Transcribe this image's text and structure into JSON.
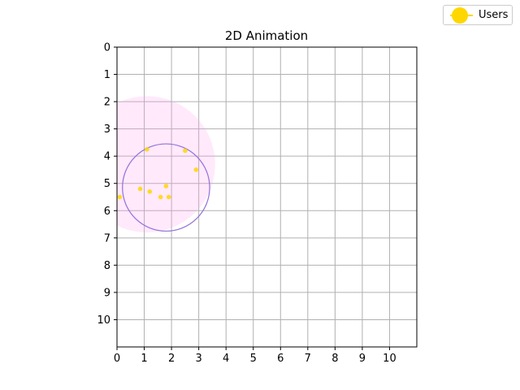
{
  "chart_data": {
    "type": "scatter",
    "title": "2D Animation",
    "xlim": [
      0,
      11
    ],
    "ylim": [
      11,
      0
    ],
    "y_inverted": true,
    "grid": true,
    "x_ticks": [
      0,
      1,
      2,
      3,
      4,
      5,
      6,
      7,
      8,
      9,
      10
    ],
    "y_ticks": [
      0,
      1,
      2,
      3,
      4,
      5,
      6,
      7,
      8,
      9,
      10
    ],
    "legend": {
      "placement": "top-right",
      "entries": [
        "Users"
      ]
    },
    "series": [
      {
        "name": "Users",
        "color": "#FFD700",
        "points": [
          {
            "x": 1.1,
            "y": 3.75
          },
          {
            "x": 2.5,
            "y": 3.8
          },
          {
            "x": 2.9,
            "y": 4.5
          },
          {
            "x": 0.85,
            "y": 5.2
          },
          {
            "x": 1.2,
            "y": 5.3
          },
          {
            "x": 1.8,
            "y": 5.1
          },
          {
            "x": 1.6,
            "y": 5.5
          },
          {
            "x": 1.9,
            "y": 5.5
          },
          {
            "x": 0.1,
            "y": 5.5
          }
        ]
      }
    ],
    "shapes": [
      {
        "kind": "circle",
        "role": "coverage-area",
        "cx": 1.1,
        "cy": 4.3,
        "r": 2.5,
        "fill": "#FF99EE",
        "fill_opacity": 0.22
      },
      {
        "kind": "circle",
        "role": "cluster-outline",
        "cx": 1.8,
        "cy": 5.15,
        "r": 1.6,
        "stroke": "#9370DB"
      }
    ]
  },
  "legend": {
    "users_label": "Users",
    "marker_color": "#FFD700"
  }
}
